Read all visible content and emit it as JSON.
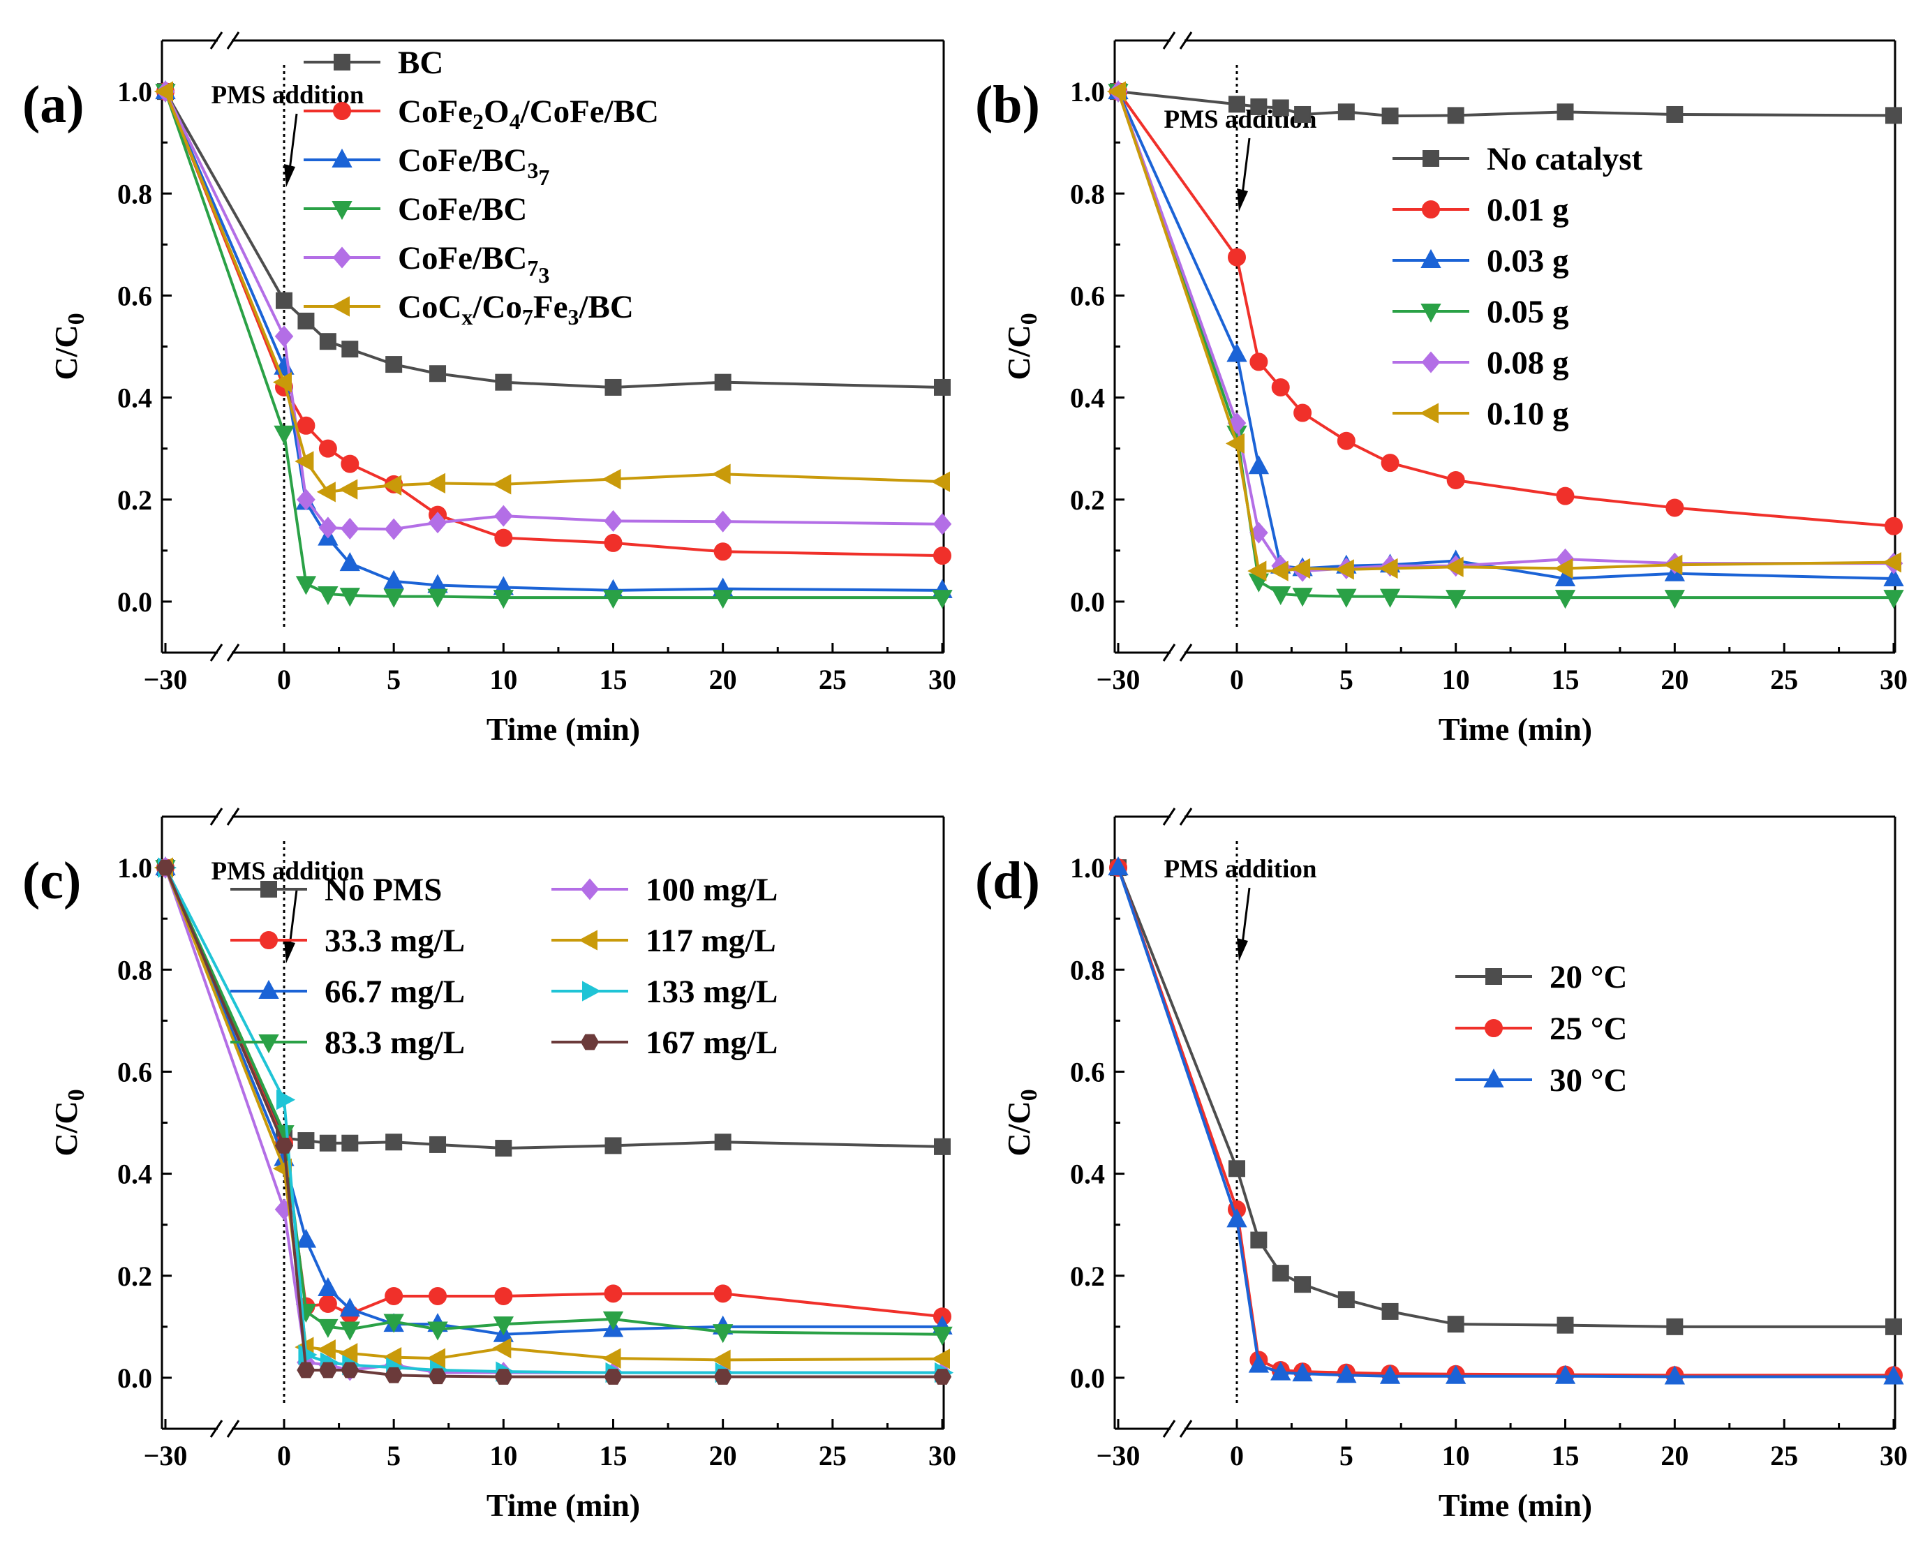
{
  "chart_data": [
    {
      "type": "line",
      "panel_label": "(a)",
      "xlabel": "Time (min)",
      "ylabel": "C/C0",
      "x_ticks": [
        "−30",
        "0",
        "5",
        "10",
        "15",
        "20",
        "25",
        "30"
      ],
      "y_ticks": [
        "0.0",
        "0.2",
        "0.4",
        "0.6",
        "0.8",
        "1.0"
      ],
      "ylim": [
        -0.1,
        1.1
      ],
      "annotation": "PMS addition",
      "legend_position": "top-right",
      "legend_columns": 1,
      "series": [
        {
          "name": "BC",
          "color": "#4d4d4d",
          "marker": "square",
          "x": [
            -30,
            0,
            1,
            2,
            3,
            5,
            7,
            10,
            15,
            20,
            30
          ],
          "values": [
            1.0,
            0.59,
            0.55,
            0.51,
            0.495,
            0.465,
            0.447,
            0.43,
            0.42,
            0.43,
            0.42
          ]
        },
        {
          "name": "CoFe2O4/CoFe/BC",
          "color": "#f0302a",
          "marker": "circle",
          "x": [
            -30,
            0,
            1,
            2,
            3,
            5,
            7,
            10,
            15,
            20,
            30
          ],
          "values": [
            1.0,
            0.42,
            0.345,
            0.3,
            0.27,
            0.23,
            0.17,
            0.125,
            0.115,
            0.098,
            0.09
          ]
        },
        {
          "name": "CoFe/BC37",
          "color": "#1b63d6",
          "marker": "triangle-up",
          "x": [
            -30,
            0,
            1,
            2,
            3,
            5,
            7,
            10,
            15,
            20,
            30
          ],
          "values": [
            1.0,
            0.46,
            0.195,
            0.125,
            0.075,
            0.04,
            0.032,
            0.028,
            0.022,
            0.025,
            0.022
          ]
        },
        {
          "name": "CoFe/BC",
          "color": "#2aa146",
          "marker": "triangle-down",
          "x": [
            -30,
            0,
            1,
            2,
            3,
            5,
            7,
            10,
            15,
            20,
            30
          ],
          "values": [
            1.0,
            0.33,
            0.035,
            0.015,
            0.012,
            0.01,
            0.01,
            0.008,
            0.008,
            0.008,
            0.008
          ]
        },
        {
          "name": "CoFe/BC73",
          "color": "#b36ee6",
          "marker": "diamond",
          "x": [
            -30,
            0,
            1,
            2,
            3,
            5,
            7,
            10,
            15,
            20,
            30
          ],
          "values": [
            1.0,
            0.52,
            0.2,
            0.145,
            0.143,
            0.142,
            0.155,
            0.168,
            0.158,
            0.157,
            0.152
          ]
        },
        {
          "name": "CoCx/Co7Fe3/BC",
          "color": "#c99a0a",
          "marker": "triangle-left",
          "x": [
            -30,
            0,
            1,
            2,
            3,
            5,
            7,
            10,
            15,
            20,
            30
          ],
          "values": [
            1.0,
            0.43,
            0.275,
            0.215,
            0.22,
            0.228,
            0.232,
            0.23,
            0.24,
            0.25,
            0.235
          ]
        }
      ]
    },
    {
      "type": "line",
      "panel_label": "(b)",
      "xlabel": "Time (min)",
      "ylabel": "C/C0",
      "x_ticks": [
        "−30",
        "0",
        "5",
        "10",
        "15",
        "20",
        "25",
        "30"
      ],
      "y_ticks": [
        "0.0",
        "0.2",
        "0.4",
        "0.6",
        "0.8",
        "1.0"
      ],
      "ylim": [
        -0.1,
        1.1
      ],
      "annotation": "PMS addition",
      "legend_position": "right",
      "legend_columns": 1,
      "series": [
        {
          "name": "No catalyst",
          "color": "#4d4d4d",
          "marker": "square",
          "x": [
            -30,
            0,
            1,
            2,
            3,
            5,
            7,
            10,
            15,
            20,
            30
          ],
          "values": [
            1.0,
            0.975,
            0.97,
            0.968,
            0.955,
            0.96,
            0.952,
            0.953,
            0.96,
            0.955,
            0.953
          ]
        },
        {
          "name": "0.01 g",
          "color": "#f0302a",
          "marker": "circle",
          "x": [
            -30,
            0,
            1,
            2,
            3,
            5,
            7,
            10,
            15,
            20,
            30
          ],
          "values": [
            1.0,
            0.675,
            0.47,
            0.42,
            0.37,
            0.315,
            0.272,
            0.238,
            0.207,
            0.184,
            0.148
          ]
        },
        {
          "name": "0.03 g",
          "color": "#1b63d6",
          "marker": "triangle-up",
          "x": [
            -30,
            0,
            1,
            2,
            3,
            5,
            7,
            10,
            15,
            20,
            30
          ],
          "values": [
            1.0,
            0.485,
            0.265,
            0.07,
            0.065,
            0.07,
            0.072,
            0.08,
            0.045,
            0.055,
            0.045
          ]
        },
        {
          "name": "0.05 g",
          "color": "#2aa146",
          "marker": "triangle-down",
          "x": [
            -30,
            0,
            1,
            2,
            3,
            5,
            7,
            10,
            15,
            20,
            30
          ],
          "values": [
            1.0,
            0.33,
            0.04,
            0.015,
            0.012,
            0.01,
            0.01,
            0.008,
            0.008,
            0.008,
            0.008
          ]
        },
        {
          "name": "0.08 g",
          "color": "#b36ee6",
          "marker": "diamond",
          "x": [
            -30,
            0,
            1,
            2,
            3,
            5,
            7,
            10,
            15,
            20,
            30
          ],
          "values": [
            1.0,
            0.35,
            0.135,
            0.07,
            0.06,
            0.065,
            0.07,
            0.07,
            0.083,
            0.075,
            0.075
          ]
        },
        {
          "name": "0.10 g",
          "color": "#c99a0a",
          "marker": "triangle-left",
          "x": [
            -30,
            0,
            1,
            2,
            3,
            5,
            7,
            10,
            15,
            20,
            30
          ],
          "values": [
            1.0,
            0.31,
            0.06,
            0.06,
            0.065,
            0.063,
            0.065,
            0.068,
            0.065,
            0.072,
            0.077
          ]
        }
      ]
    },
    {
      "type": "line",
      "panel_label": "(c)",
      "xlabel": "Time (min)",
      "ylabel": "C/C0",
      "x_ticks": [
        "−30",
        "0",
        "5",
        "10",
        "15",
        "20",
        "25",
        "30"
      ],
      "y_ticks": [
        "0.0",
        "0.2",
        "0.4",
        "0.6",
        "0.8",
        "1.0"
      ],
      "ylim": [
        -0.1,
        1.1
      ],
      "annotation": "PMS addition",
      "legend_position": "top-right",
      "legend_columns": 2,
      "series": [
        {
          "name": "No PMS",
          "color": "#4d4d4d",
          "marker": "square",
          "x": [
            -30,
            0,
            1,
            2,
            3,
            5,
            7,
            10,
            15,
            20,
            30
          ],
          "values": [
            1.0,
            0.47,
            0.465,
            0.46,
            0.46,
            0.462,
            0.457,
            0.45,
            0.455,
            0.462,
            0.453
          ]
        },
        {
          "name": "33.3 mg/L",
          "color": "#f0302a",
          "marker": "circle",
          "x": [
            -30,
            0,
            1,
            2,
            3,
            5,
            7,
            10,
            15,
            20,
            30
          ],
          "values": [
            1.0,
            0.46,
            0.14,
            0.145,
            0.125,
            0.16,
            0.16,
            0.16,
            0.165,
            0.165,
            0.12
          ]
        },
        {
          "name": "66.7 mg/L",
          "color": "#1b63d6",
          "marker": "triangle-up",
          "x": [
            -30,
            0,
            1,
            2,
            3,
            5,
            7,
            10,
            15,
            20,
            30
          ],
          "values": [
            1.0,
            0.43,
            0.27,
            0.175,
            0.135,
            0.105,
            0.105,
            0.085,
            0.095,
            0.1,
            0.1
          ]
        },
        {
          "name": "83.3 mg/L",
          "color": "#2aa146",
          "marker": "triangle-down",
          "x": [
            -30,
            0,
            1,
            2,
            3,
            5,
            7,
            10,
            15,
            20,
            30
          ],
          "values": [
            1.0,
            0.48,
            0.13,
            0.1,
            0.095,
            0.11,
            0.095,
            0.105,
            0.115,
            0.09,
            0.085
          ]
        },
        {
          "name": "100 mg/L",
          "color": "#b36ee6",
          "marker": "diamond",
          "x": [
            -30,
            0,
            1,
            2,
            3,
            5,
            7,
            10,
            15,
            20,
            30
          ],
          "values": [
            1.0,
            0.33,
            0.03,
            0.025,
            0.015,
            0.025,
            0.01,
            0.01,
            0.01,
            0.01,
            0.01
          ]
        },
        {
          "name": "117 mg/L",
          "color": "#c99a0a",
          "marker": "triangle-left",
          "x": [
            -30,
            0,
            1,
            2,
            3,
            5,
            7,
            10,
            15,
            20,
            30
          ],
          "values": [
            1.0,
            0.41,
            0.06,
            0.055,
            0.048,
            0.04,
            0.038,
            0.058,
            0.038,
            0.035,
            0.037
          ]
        },
        {
          "name": "133 mg/L",
          "color": "#1fc4d6",
          "marker": "triangle-right",
          "x": [
            -30,
            0,
            1,
            2,
            3,
            5,
            7,
            10,
            15,
            20,
            30
          ],
          "values": [
            1.0,
            0.545,
            0.045,
            0.03,
            0.025,
            0.02,
            0.015,
            0.012,
            0.01,
            0.01,
            0.01
          ]
        },
        {
          "name": "167 mg/L",
          "color": "#6b3a3a",
          "marker": "hexagon",
          "x": [
            -30,
            0,
            1,
            2,
            3,
            5,
            7,
            10,
            15,
            20,
            30
          ],
          "values": [
            1.0,
            0.455,
            0.015,
            0.015,
            0.015,
            0.005,
            0.003,
            0.002,
            0.002,
            0.002,
            0.002
          ]
        }
      ]
    },
    {
      "type": "line",
      "panel_label": "(d)",
      "xlabel": "Time (min)",
      "ylabel": "C/C0",
      "x_ticks": [
        "−30",
        "0",
        "5",
        "10",
        "15",
        "20",
        "25",
        "30"
      ],
      "y_ticks": [
        "0.0",
        "0.2",
        "0.4",
        "0.6",
        "0.8",
        "1.0"
      ],
      "ylim": [
        -0.1,
        1.1
      ],
      "annotation": "PMS addition",
      "legend_position": "right",
      "legend_columns": 1,
      "series": [
        {
          "name": "20 °C",
          "color": "#4d4d4d",
          "marker": "square",
          "x": [
            -30,
            0,
            1,
            2,
            3,
            5,
            7,
            10,
            15,
            20,
            30
          ],
          "values": [
            1.0,
            0.41,
            0.27,
            0.205,
            0.183,
            0.153,
            0.13,
            0.105,
            0.103,
            0.1,
            0.1
          ]
        },
        {
          "name": "25 °C",
          "color": "#f0302a",
          "marker": "circle",
          "x": [
            -30,
            0,
            1,
            2,
            3,
            5,
            7,
            10,
            15,
            20,
            30
          ],
          "values": [
            1.0,
            0.33,
            0.035,
            0.015,
            0.012,
            0.01,
            0.008,
            0.007,
            0.006,
            0.005,
            0.005
          ]
        },
        {
          "name": "30 °C",
          "color": "#1b63d6",
          "marker": "triangle-up",
          "x": [
            -30,
            0,
            1,
            2,
            3,
            5,
            7,
            10,
            15,
            20,
            30
          ],
          "values": [
            1.0,
            0.31,
            0.025,
            0.01,
            0.008,
            0.005,
            0.003,
            0.003,
            0.003,
            0.002,
            0.002
          ]
        }
      ]
    }
  ]
}
